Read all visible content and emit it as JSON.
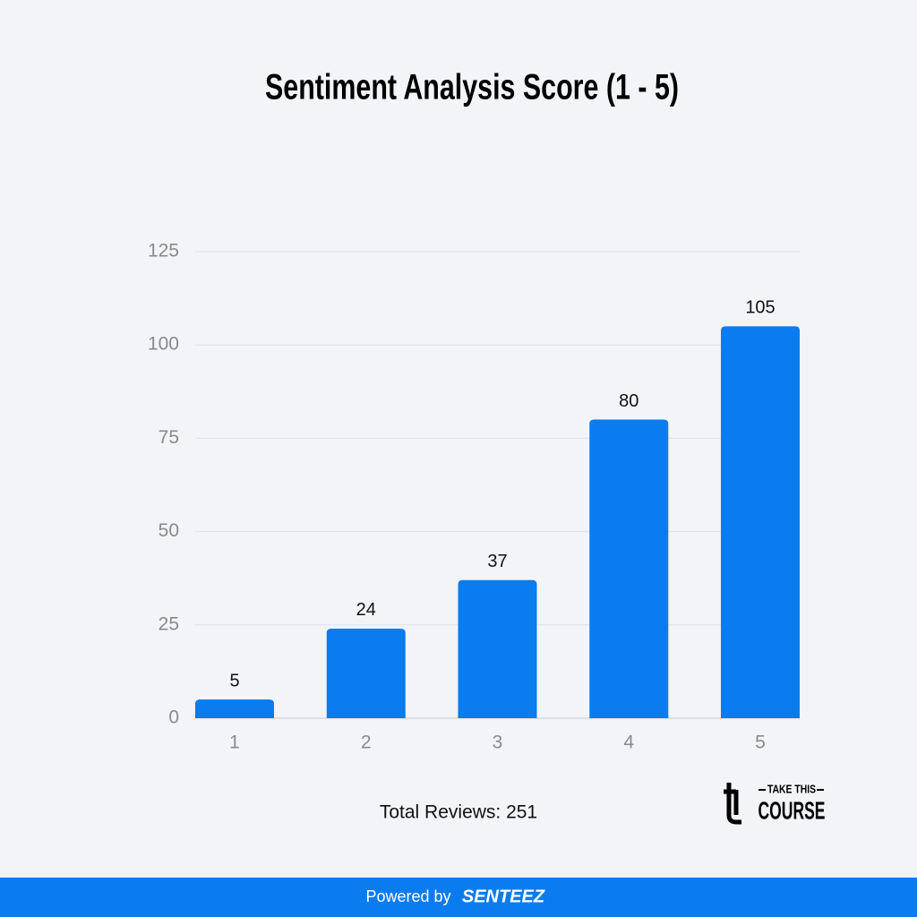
{
  "chart_data": {
    "type": "bar",
    "title": "Sentiment Analysis Score (1 - 5)",
    "categories": [
      "1",
      "2",
      "3",
      "4",
      "5"
    ],
    "values": [
      5,
      24,
      37,
      80,
      105
    ],
    "color": "#0a7cee",
    "ylim": [
      0,
      125
    ],
    "yticks": [
      0,
      25,
      50,
      75,
      100,
      125
    ],
    "grid": true,
    "annotation": "Total Reviews: 251"
  },
  "logo": {
    "top": "TAKE THIS",
    "bottom": "COURSE"
  },
  "footer": {
    "text": "Powered by",
    "brand": "SENTEEZ"
  }
}
